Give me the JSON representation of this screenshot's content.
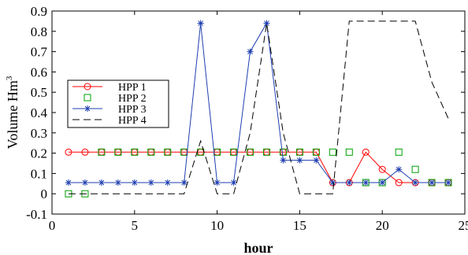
{
  "chart_data": {
    "type": "line",
    "xlabel": "hour",
    "ylabel": "Volume Hm",
    "ylabel_superscript": "3",
    "xlim": [
      0,
      25
    ],
    "ylim": [
      -0.1,
      0.9
    ],
    "xticks": [
      0,
      5,
      10,
      15,
      20,
      25
    ],
    "yticks": [
      -0.1,
      0,
      0.1,
      0.2,
      0.3,
      0.4,
      0.5,
      0.6,
      0.7,
      0.8,
      0.9
    ],
    "grid": false,
    "legend_position": "left, middle",
    "x": [
      1,
      2,
      3,
      4,
      5,
      6,
      7,
      8,
      9,
      10,
      11,
      12,
      13,
      14,
      15,
      16,
      17,
      18,
      19,
      20,
      21,
      22,
      23,
      24
    ],
    "series": [
      {
        "name": "HPP 1",
        "color": "#ff0000",
        "marker": "circle",
        "line": "solid",
        "values": [
          0.205,
          0.205,
          0.205,
          0.205,
          0.205,
          0.205,
          0.205,
          0.205,
          0.205,
          0.205,
          0.205,
          0.205,
          0.205,
          0.205,
          0.205,
          0.205,
          0.055,
          0.055,
          0.205,
          0.12,
          0.055,
          0.055,
          0.055,
          0.055
        ]
      },
      {
        "name": "HPP 2",
        "color": "#00a000",
        "marker": "square",
        "line": "none",
        "values": [
          0.0,
          0.0,
          0.205,
          0.205,
          0.205,
          0.205,
          0.205,
          0.205,
          0.205,
          0.205,
          0.205,
          0.205,
          0.205,
          0.205,
          0.205,
          0.205,
          0.205,
          0.205,
          0.055,
          0.055,
          0.205,
          0.12,
          0.055,
          0.055
        ]
      },
      {
        "name": "HPP 3",
        "color": "#1f3fb0",
        "marker": "star",
        "line": "solid",
        "values": [
          0.055,
          0.055,
          0.055,
          0.055,
          0.055,
          0.055,
          0.055,
          0.055,
          0.84,
          0.055,
          0.055,
          0.7,
          0.84,
          0.165,
          0.165,
          0.165,
          0.055,
          0.055,
          0.055,
          0.055,
          0.12,
          0.055,
          0.055,
          0.055
        ]
      },
      {
        "name": "HPP 4",
        "color": "#000000",
        "marker": "none",
        "line": "dashed",
        "values": [
          0.0,
          0.0,
          0.0,
          0.0,
          0.0,
          0.0,
          0.0,
          0.0,
          0.26,
          0.0,
          0.0,
          0.3,
          0.84,
          0.3,
          0.0,
          0.0,
          0.0,
          0.85,
          0.85,
          0.85,
          0.85,
          0.85,
          0.55,
          0.37
        ]
      }
    ]
  }
}
